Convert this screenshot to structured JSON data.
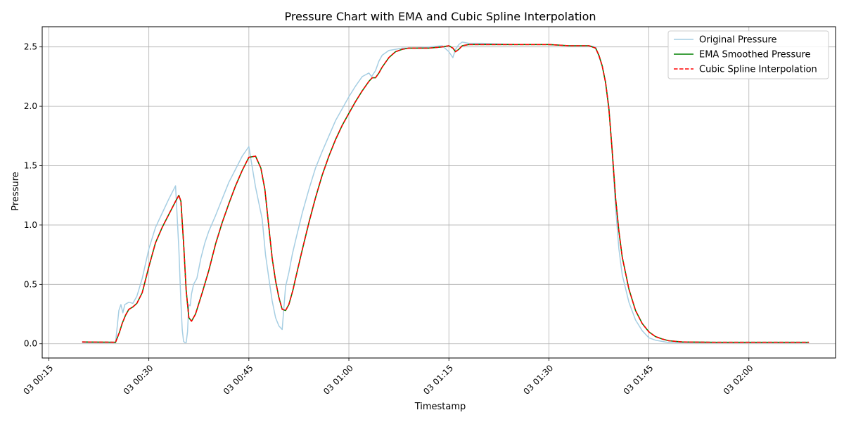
{
  "chart_data": {
    "type": "line",
    "title": "Pressure Chart with EMA and Cubic Spline Interpolation",
    "xlabel": "Timestamp",
    "ylabel": "Pressure",
    "xlim": [
      "03 00:14:00",
      "03 02:13:00"
    ],
    "ylim": [
      -0.12,
      2.67
    ],
    "grid": true,
    "legend_position": "top-right",
    "x_ticks": [
      "03 00:15",
      "03 00:30",
      "03 00:45",
      "03 01:00",
      "03 01:15",
      "03 01:30",
      "03 01:45",
      "03 02:00"
    ],
    "y_ticks": [
      "0.0",
      "0.5",
      "1.0",
      "1.5",
      "2.0",
      "2.5"
    ],
    "series": [
      {
        "name": "Original Pressure",
        "color": "#a6cee3",
        "style": "solid",
        "x": [
          "03 00:20:00",
          "03 00:25:00",
          "03 00:25:30",
          "03 00:25:48",
          "03 00:26:06",
          "03 00:26:24",
          "03 00:27:00",
          "03 00:27:36",
          "03 00:28:12",
          "03 00:29:00",
          "03 00:30:00",
          "03 00:31:00",
          "03 00:32:00",
          "03 00:33:00",
          "03 00:34:00",
          "03 00:34:30",
          "03 00:34:48",
          "03 00:35:00",
          "03 00:35:12",
          "03 00:35:24",
          "03 00:35:36",
          "03 00:35:48",
          "03 00:36:00",
          "03 00:36:12",
          "03 00:36:24",
          "03 00:36:42",
          "03 00:37:12",
          "03 00:37:48",
          "03 00:38:24",
          "03 00:39:00",
          "03 00:40:00",
          "03 00:41:00",
          "03 00:42:00",
          "03 00:43:00",
          "03 00:44:00",
          "03 00:45:00",
          "03 00:46:00",
          "03 00:47:00",
          "03 00:47:30",
          "03 00:48:00",
          "03 00:48:30",
          "03 00:49:00",
          "03 00:49:30",
          "03 00:50:00",
          "03 00:50:30",
          "03 00:51:00",
          "03 00:51:30",
          "03 00:52:00",
          "03 00:53:00",
          "03 00:54:00",
          "03 00:55:00",
          "03 00:56:00",
          "03 00:57:00",
          "03 00:58:00",
          "03 00:59:00",
          "03 01:00:00",
          "03 01:01:00",
          "03 01:02:00",
          "03 01:03:00",
          "03 01:03:24",
          "03 01:04:00",
          "03 01:04:30",
          "03 01:05:00",
          "03 01:06:00",
          "03 01:07:00",
          "03 01:08:00",
          "03 01:09:00",
          "03 01:10:00",
          "03 01:12:00",
          "03 01:14:00",
          "03 01:15:00",
          "03 01:15:36",
          "03 01:16:00",
          "03 01:16:30",
          "03 01:17:00",
          "03 01:18:00",
          "03 01:20:00",
          "03 01:25:00",
          "03 01:30:00",
          "03 01:33:00",
          "03 01:36:00",
          "03 01:37:00",
          "03 01:37:30",
          "03 01:38:00",
          "03 01:38:30",
          "03 01:39:00",
          "03 01:39:30",
          "03 01:40:00",
          "03 01:40:30",
          "03 01:41:00",
          "03 01:42:00",
          "03 01:43:00",
          "03 01:44:00",
          "03 01:45:00",
          "03 01:46:00",
          "03 01:47:00",
          "03 01:48:00",
          "03 01:50:00",
          "03 01:55:00",
          "03 02:00:00",
          "03 02:05:00",
          "03 02:09:00"
        ],
        "values": [
          0.01,
          0.01,
          0.28,
          0.33,
          0.26,
          0.33,
          0.35,
          0.34,
          0.4,
          0.55,
          0.8,
          0.98,
          1.1,
          1.22,
          1.33,
          0.8,
          0.35,
          0.12,
          0.02,
          0.01,
          0.01,
          0.1,
          0.33,
          0.32,
          0.42,
          0.5,
          0.55,
          0.72,
          0.85,
          0.95,
          1.08,
          1.22,
          1.36,
          1.47,
          1.58,
          1.66,
          1.32,
          1.05,
          0.75,
          0.55,
          0.36,
          0.22,
          0.15,
          0.12,
          0.48,
          0.6,
          0.75,
          0.87,
          1.1,
          1.3,
          1.48,
          1.62,
          1.75,
          1.88,
          1.98,
          2.08,
          2.17,
          2.25,
          2.28,
          2.25,
          2.3,
          2.38,
          2.43,
          2.47,
          2.48,
          2.49,
          2.49,
          2.49,
          2.5,
          2.51,
          2.46,
          2.41,
          2.48,
          2.52,
          2.54,
          2.53,
          2.53,
          2.52,
          2.52,
          2.51,
          2.51,
          2.5,
          2.42,
          2.34,
          2.2,
          2.0,
          1.6,
          1.15,
          0.8,
          0.58,
          0.35,
          0.2,
          0.11,
          0.05,
          0.03,
          0.02,
          0.01,
          0.01,
          0.01,
          0.01,
          0.01,
          0.01
        ]
      },
      {
        "name": "EMA Smoothed Pressure",
        "color": "#008000",
        "style": "solid",
        "x": [
          "03 00:20:00",
          "03 00:24:00",
          "03 00:25:00",
          "03 00:25:36",
          "03 00:26:00",
          "03 00:26:30",
          "03 00:27:00",
          "03 00:27:36",
          "03 00:28:12",
          "03 00:29:00",
          "03 00:30:00",
          "03 00:31:00",
          "03 00:32:00",
          "03 00:33:00",
          "03 00:34:00",
          "03 00:34:30",
          "03 00:34:48",
          "03 00:35:12",
          "03 00:35:36",
          "03 00:36:00",
          "03 00:36:24",
          "03 00:37:00",
          "03 00:38:00",
          "03 00:39:00",
          "03 00:40:00",
          "03 00:41:00",
          "03 00:42:00",
          "03 00:43:00",
          "03 00:44:00",
          "03 00:45:00",
          "03 00:46:00",
          "03 00:46:48",
          "03 00:47:24",
          "03 00:48:00",
          "03 00:48:30",
          "03 00:49:00",
          "03 00:49:30",
          "03 00:50:00",
          "03 00:50:30",
          "03 00:51:00",
          "03 00:51:36",
          "03 00:52:00",
          "03 00:53:00",
          "03 00:54:00",
          "03 00:55:00",
          "03 00:56:00",
          "03 00:57:00",
          "03 00:58:00",
          "03 00:59:00",
          "03 01:00:00",
          "03 01:01:00",
          "03 01:02:00",
          "03 01:03:00",
          "03 01:03:30",
          "03 01:04:00",
          "03 01:04:30",
          "03 01:05:00",
          "03 01:06:00",
          "03 01:07:00",
          "03 01:08:00",
          "03 01:09:00",
          "03 01:10:00",
          "03 01:12:00",
          "03 01:14:00",
          "03 01:15:00",
          "03 01:15:36",
          "03 01:16:00",
          "03 01:16:30",
          "03 01:17:00",
          "03 01:18:00",
          "03 01:20:00",
          "03 01:25:00",
          "03 01:30:00",
          "03 01:33:00",
          "03 01:36:00",
          "03 01:37:00",
          "03 01:37:30",
          "03 01:38:00",
          "03 01:38:30",
          "03 01:39:00",
          "03 01:39:30",
          "03 01:40:00",
          "03 01:40:30",
          "03 01:41:00",
          "03 01:42:00",
          "03 01:43:00",
          "03 01:44:00",
          "03 01:45:00",
          "03 01:46:00",
          "03 01:47:00",
          "03 01:48:00",
          "03 01:50:00",
          "03 01:55:00",
          "03 02:00:00",
          "03 02:05:00",
          "03 02:09:00"
        ],
        "values": [
          0.015,
          0.013,
          0.012,
          0.1,
          0.17,
          0.24,
          0.29,
          0.31,
          0.34,
          0.43,
          0.65,
          0.85,
          0.98,
          1.09,
          1.2,
          1.25,
          1.2,
          0.85,
          0.45,
          0.22,
          0.19,
          0.25,
          0.43,
          0.62,
          0.84,
          1.02,
          1.18,
          1.33,
          1.46,
          1.57,
          1.58,
          1.48,
          1.3,
          0.98,
          0.72,
          0.53,
          0.39,
          0.29,
          0.28,
          0.33,
          0.45,
          0.55,
          0.79,
          1.02,
          1.23,
          1.42,
          1.58,
          1.72,
          1.84,
          1.94,
          2.04,
          2.13,
          2.21,
          2.24,
          2.24,
          2.28,
          2.33,
          2.41,
          2.46,
          2.48,
          2.49,
          2.49,
          2.49,
          2.5,
          2.51,
          2.49,
          2.46,
          2.48,
          2.51,
          2.52,
          2.52,
          2.52,
          2.52,
          2.51,
          2.51,
          2.49,
          2.43,
          2.34,
          2.2,
          1.98,
          1.62,
          1.23,
          0.95,
          0.73,
          0.46,
          0.28,
          0.17,
          0.1,
          0.06,
          0.04,
          0.025,
          0.015,
          0.012,
          0.012,
          0.012,
          0.012
        ]
      },
      {
        "name": "Cubic Spline Interpolation",
        "color": "#ff0000",
        "style": "dashed",
        "x": [
          "03 00:20:00",
          "03 00:24:00",
          "03 00:25:00",
          "03 00:25:36",
          "03 00:26:00",
          "03 00:26:30",
          "03 00:27:00",
          "03 00:27:36",
          "03 00:28:12",
          "03 00:29:00",
          "03 00:30:00",
          "03 00:31:00",
          "03 00:32:00",
          "03 00:33:00",
          "03 00:34:00",
          "03 00:34:30",
          "03 00:34:48",
          "03 00:35:12",
          "03 00:35:36",
          "03 00:36:00",
          "03 00:36:24",
          "03 00:37:00",
          "03 00:38:00",
          "03 00:39:00",
          "03 00:40:00",
          "03 00:41:00",
          "03 00:42:00",
          "03 00:43:00",
          "03 00:44:00",
          "03 00:45:00",
          "03 00:46:00",
          "03 00:46:48",
          "03 00:47:24",
          "03 00:48:00",
          "03 00:48:30",
          "03 00:49:00",
          "03 00:49:30",
          "03 00:50:00",
          "03 00:50:30",
          "03 00:51:00",
          "03 00:51:36",
          "03 00:52:00",
          "03 00:53:00",
          "03 00:54:00",
          "03 00:55:00",
          "03 00:56:00",
          "03 00:57:00",
          "03 00:58:00",
          "03 00:59:00",
          "03 01:00:00",
          "03 01:01:00",
          "03 01:02:00",
          "03 01:03:00",
          "03 01:03:30",
          "03 01:04:00",
          "03 01:04:30",
          "03 01:05:00",
          "03 01:06:00",
          "03 01:07:00",
          "03 01:08:00",
          "03 01:09:00",
          "03 01:10:00",
          "03 01:12:00",
          "03 01:14:00",
          "03 01:15:00",
          "03 01:15:36",
          "03 01:16:00",
          "03 01:16:30",
          "03 01:17:00",
          "03 01:18:00",
          "03 01:20:00",
          "03 01:25:00",
          "03 01:30:00",
          "03 01:33:00",
          "03 01:36:00",
          "03 01:37:00",
          "03 01:37:30",
          "03 01:38:00",
          "03 01:38:30",
          "03 01:39:00",
          "03 01:39:30",
          "03 01:40:00",
          "03 01:40:30",
          "03 01:41:00",
          "03 01:42:00",
          "03 01:43:00",
          "03 01:44:00",
          "03 01:45:00",
          "03 01:46:00",
          "03 01:47:00",
          "03 01:48:00",
          "03 01:50:00",
          "03 01:55:00",
          "03 02:00:00",
          "03 02:05:00",
          "03 02:09:00"
        ],
        "values": [
          0.015,
          0.013,
          0.012,
          0.1,
          0.17,
          0.24,
          0.29,
          0.31,
          0.34,
          0.43,
          0.65,
          0.85,
          0.98,
          1.09,
          1.2,
          1.25,
          1.2,
          0.85,
          0.45,
          0.22,
          0.19,
          0.25,
          0.43,
          0.62,
          0.84,
          1.02,
          1.18,
          1.33,
          1.46,
          1.57,
          1.58,
          1.48,
          1.3,
          0.98,
          0.72,
          0.53,
          0.39,
          0.29,
          0.28,
          0.33,
          0.45,
          0.55,
          0.79,
          1.02,
          1.23,
          1.42,
          1.58,
          1.72,
          1.84,
          1.94,
          2.04,
          2.13,
          2.21,
          2.24,
          2.24,
          2.28,
          2.33,
          2.41,
          2.46,
          2.48,
          2.49,
          2.49,
          2.49,
          2.5,
          2.51,
          2.49,
          2.46,
          2.48,
          2.51,
          2.52,
          2.52,
          2.52,
          2.52,
          2.51,
          2.51,
          2.49,
          2.43,
          2.34,
          2.2,
          1.98,
          1.62,
          1.23,
          0.95,
          0.73,
          0.46,
          0.28,
          0.17,
          0.1,
          0.06,
          0.04,
          0.025,
          0.015,
          0.012,
          0.012,
          0.012,
          0.012
        ]
      }
    ]
  }
}
